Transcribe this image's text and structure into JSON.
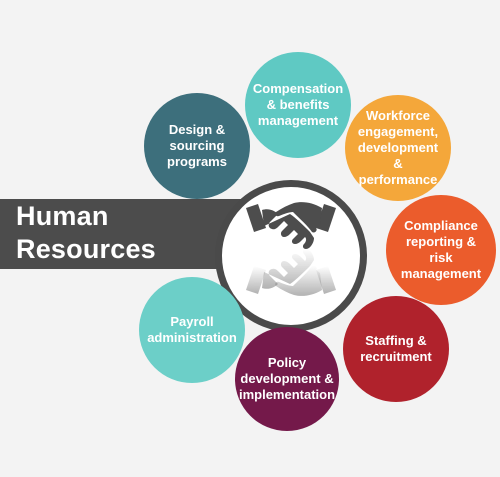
{
  "title": {
    "line1": "Human",
    "line2": "Resources"
  },
  "hub": {
    "icon": "handshake-icon"
  },
  "nodes": {
    "compensation": {
      "label": "Compensation & benefits management",
      "color": "#5fc9c3"
    },
    "design": {
      "label": "Design & sourcing programs",
      "color": "#3d6f7c"
    },
    "workforce": {
      "label": "Workforce engagement, development & performance",
      "color": "#f4a73a"
    },
    "compliance": {
      "label": "Compliance reporting & risk management",
      "color": "#eb5c2c"
    },
    "payroll": {
      "label": "Payroll administration",
      "color": "#6ccfc8"
    },
    "staffing": {
      "label": "Staffing & recruitment",
      "color": "#b0222c"
    },
    "policy": {
      "label": "Policy development & implementation",
      "color": "#74194a"
    }
  }
}
